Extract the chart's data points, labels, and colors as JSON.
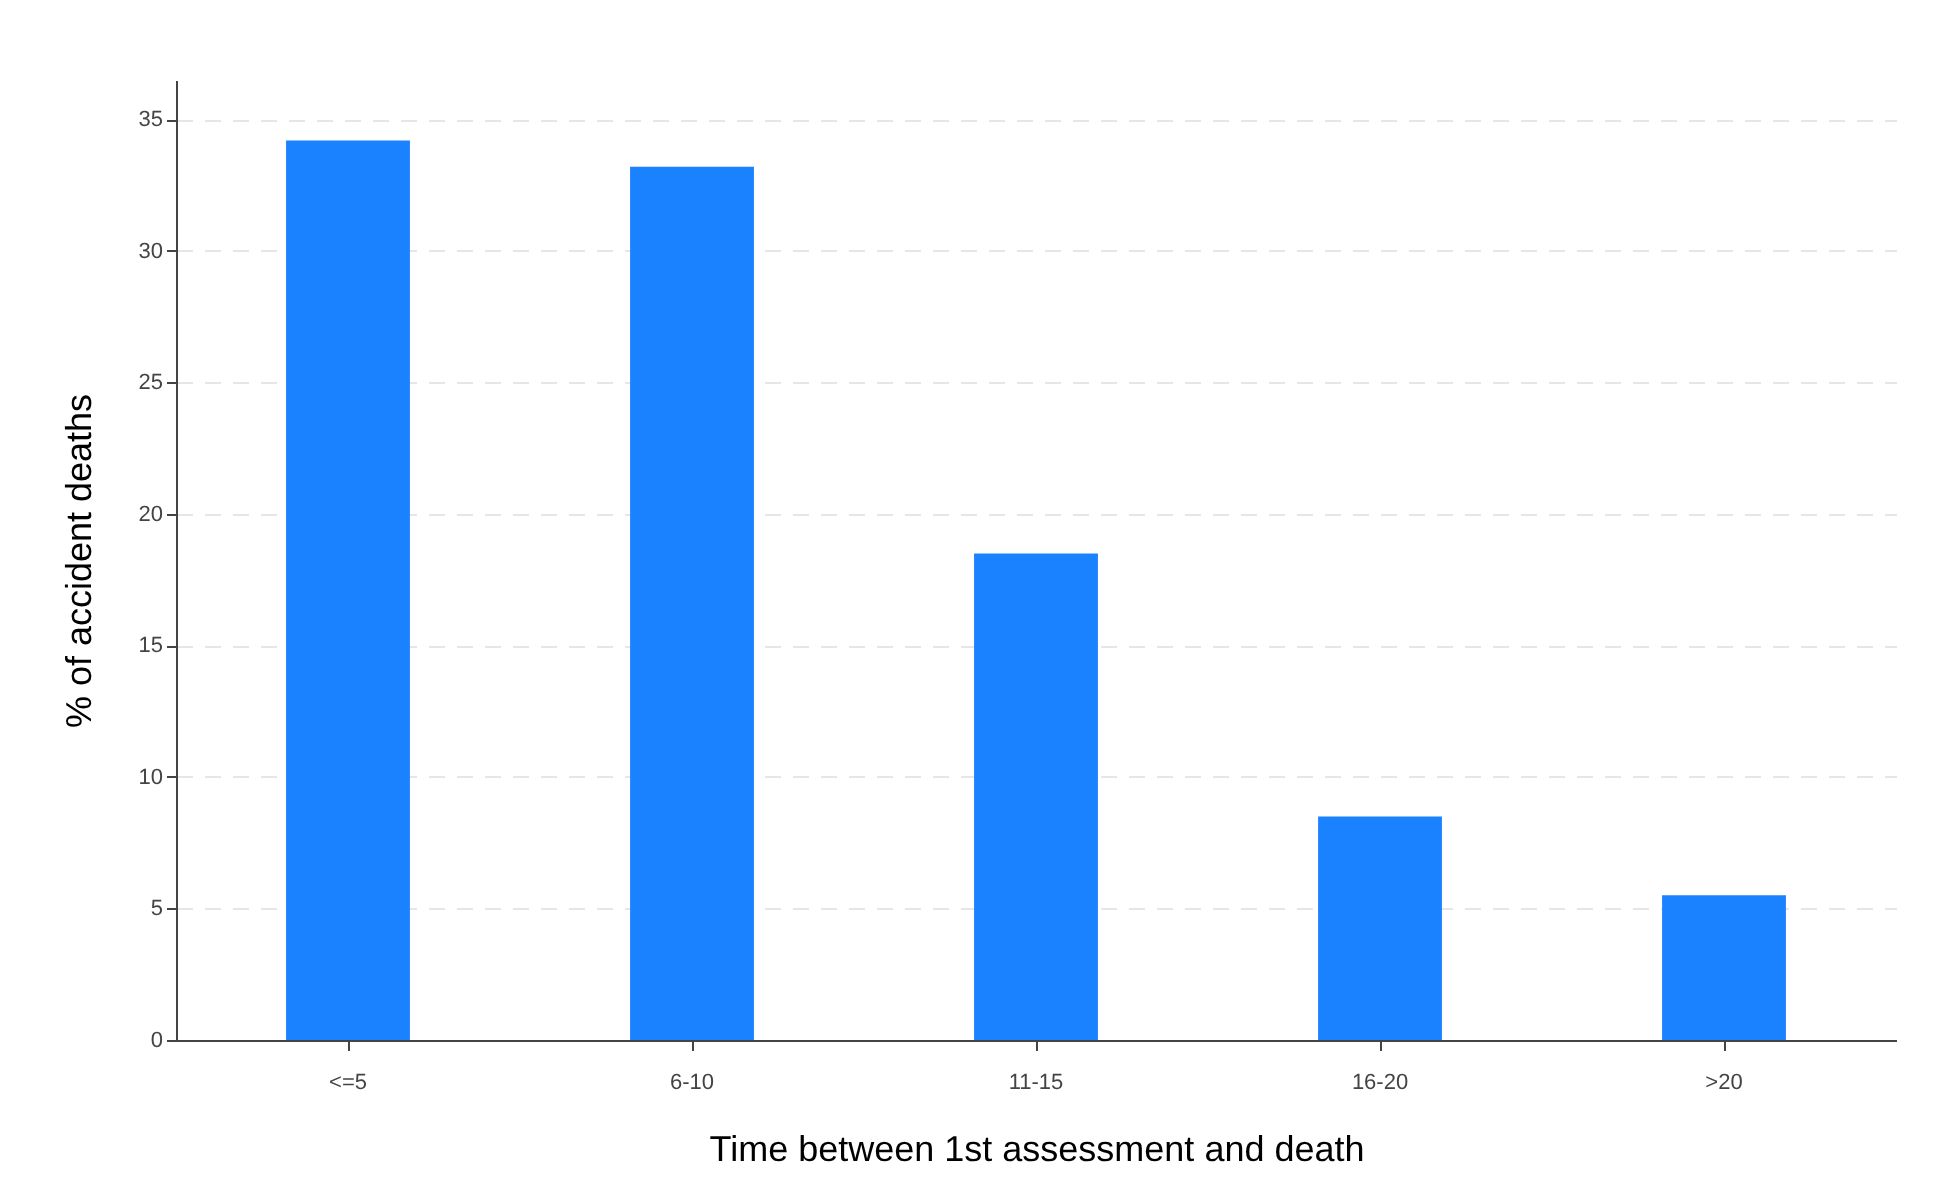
{
  "chart_data": {
    "type": "bar",
    "xlabel": "Time between 1st assessment and death",
    "ylabel": "% of accident deaths",
    "categories": [
      "<=5",
      "6-10",
      "11-15",
      "16-20",
      ">20"
    ],
    "values": [
      34.2,
      33.2,
      18.5,
      8.5,
      5.5
    ],
    "color": "#1a82ff",
    "ylim": [
      0,
      36.5
    ],
    "yticks": [
      0,
      5,
      10,
      15,
      20,
      25,
      30,
      35
    ],
    "grid": "y"
  }
}
